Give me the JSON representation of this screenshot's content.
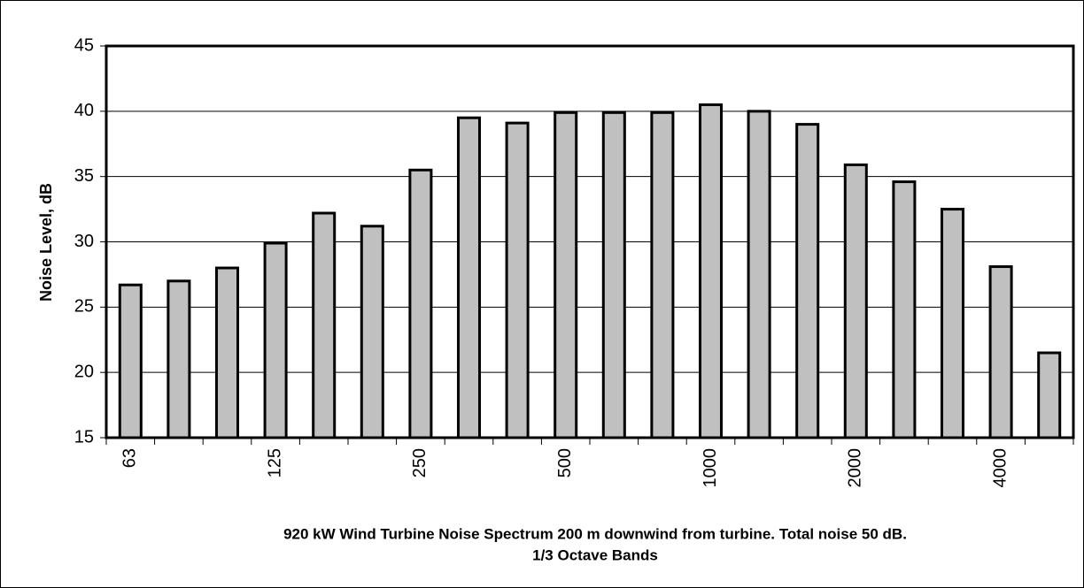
{
  "chart_data": {
    "type": "bar",
    "ylabel": "Noise Level, dB",
    "xlabel": [
      "920 kW Wind Turbine Noise Spectrum 200 m downwind from turbine. Total noise 50 dB.",
      "1/3 Octave Bands"
    ],
    "categories": [
      "63",
      null,
      null,
      "125",
      null,
      null,
      "250",
      null,
      null,
      "500",
      null,
      null,
      "1000",
      null,
      null,
      "2000",
      null,
      null,
      "4000",
      null
    ],
    "values": [
      26.7,
      27,
      28,
      29.9,
      32.2,
      31.2,
      35.5,
      39.5,
      39.1,
      39.9,
      39.9,
      39.9,
      40.5,
      40,
      39,
      35.9,
      34.6,
      32.5,
      28.1,
      21.5
    ],
    "color": "#c0c0c0",
    "ylim": [
      15,
      45
    ],
    "yticks": [
      15,
      20,
      25,
      30,
      35,
      40,
      45
    ],
    "grid": true
  }
}
